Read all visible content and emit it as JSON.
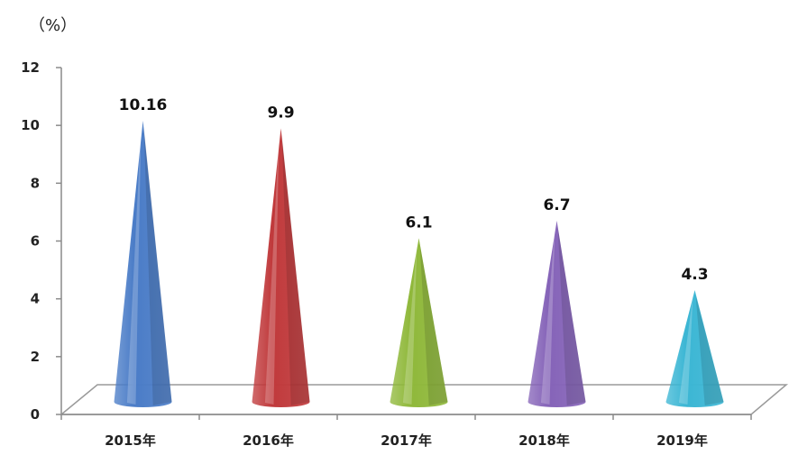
{
  "chart_data": {
    "type": "bar",
    "bar_shape": "cone",
    "unit": "（%）",
    "categories": [
      "2015年",
      "2016年",
      "2017年",
      "2018年",
      "2019年"
    ],
    "values": [
      10.16,
      9.9,
      6.1,
      6.7,
      4.3
    ],
    "data_labels": [
      "10.16",
      "9.9",
      "6.1",
      "6.7",
      "4.3"
    ],
    "colors": [
      "#4a7cc7",
      "#c0393b",
      "#8fb83a",
      "#8563b8",
      "#3bb6d4"
    ],
    "title": "",
    "xlabel": "",
    "ylabel": "",
    "ylim": [
      0,
      12
    ],
    "yticks": [
      0,
      2,
      4,
      6,
      8,
      10,
      12
    ],
    "grid": false,
    "legend": "none"
  }
}
